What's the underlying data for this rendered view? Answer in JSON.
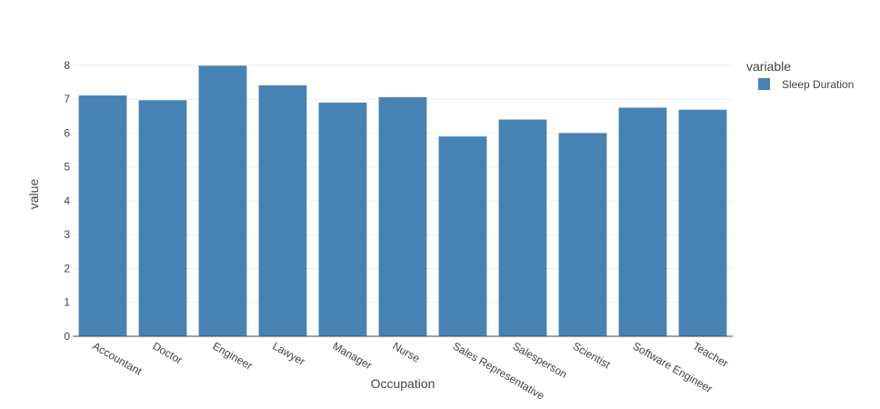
{
  "chart_data": {
    "type": "bar",
    "categories": [
      "Accountant",
      "Doctor",
      "Engineer",
      "Lawyer",
      "Manager",
      "Nurse",
      "Sales Representative",
      "Salesperson",
      "Scientist",
      "Software Engineer",
      "Teacher"
    ],
    "series": [
      {
        "name": "Sleep Duration",
        "color": "#4682b4",
        "values": [
          7.11,
          6.97,
          7.99,
          7.41,
          6.9,
          7.06,
          5.9,
          6.4,
          6.0,
          6.75,
          6.69
        ]
      }
    ],
    "xlabel": "Occupation",
    "ylabel": "value",
    "ylim": [
      0,
      8.4
    ],
    "yticks": [
      0,
      1,
      2,
      3,
      4,
      5,
      6,
      7,
      8
    ],
    "legend": {
      "title": "variable",
      "placement": "top-right"
    },
    "grid": true,
    "tick_label_rotation": 30
  }
}
